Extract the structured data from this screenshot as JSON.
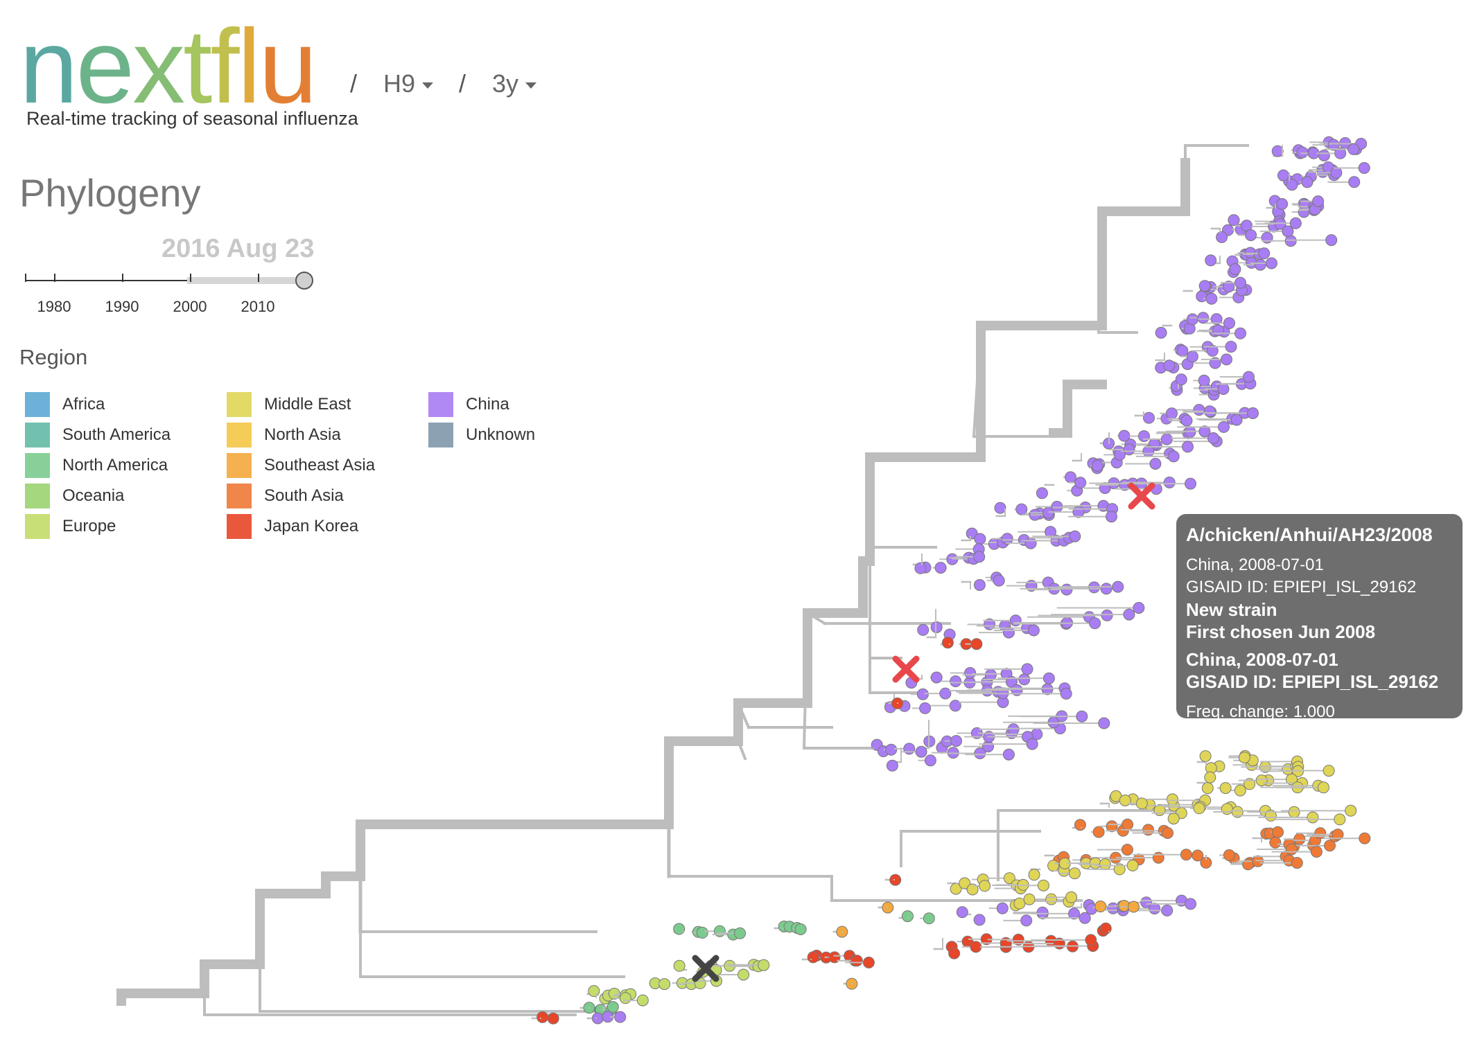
{
  "header": {
    "logo_letters": [
      {
        "ch": "n",
        "color": "#5ba7a2"
      },
      {
        "ch": "e",
        "color": "#6db38a"
      },
      {
        "ch": "x",
        "color": "#85bd74"
      },
      {
        "ch": "t",
        "color": "#a5c55f"
      },
      {
        "ch": "f",
        "color": "#c1bf4d"
      },
      {
        "ch": "l",
        "color": "#e0aa3b"
      },
      {
        "ch": "u",
        "color": "#e37f34"
      }
    ],
    "separator": "/",
    "lineage": "H9",
    "resolution": "3y",
    "tagline": "Real-time tracking of seasonal influenza"
  },
  "section_title": "Phylogeny",
  "date_slider": {
    "current_date": "2016 Aug 23",
    "ticks": [
      "1980",
      "1990",
      "2000",
      "2010"
    ],
    "axis_start_year": 1976,
    "axis_end_year": 2017,
    "range_start_year": 2000,
    "range_end_year": 2016.64
  },
  "legend": {
    "title": "Region",
    "items": [
      {
        "label": "Africa",
        "color": "#5ea9d4"
      },
      {
        "label": "South America",
        "color": "#62bba6"
      },
      {
        "label": "North America",
        "color": "#7ccb8e"
      },
      {
        "label": "Oceania",
        "color": "#9cd371"
      },
      {
        "label": "Europe",
        "color": "#c3dc6a"
      },
      {
        "label": "Middle East",
        "color": "#dfd557"
      },
      {
        "label": "North Asia",
        "color": "#f5c746"
      },
      {
        "label": "Southeast Asia",
        "color": "#f4a93e"
      },
      {
        "label": "South Asia",
        "color": "#ef7a36"
      },
      {
        "label": "Japan Korea",
        "color": "#e74629"
      },
      {
        "label": "China",
        "color": "#a97df3"
      },
      {
        "label": "Unknown",
        "color": "#8099ab"
      }
    ]
  },
  "tooltip": {
    "strain": "A/chicken/Anhui/AH23/2008",
    "location_date": "China, 2008-07-01",
    "gisaid": "GISAID ID: EPIEPI_ISL_29162",
    "new_strain": "New strain",
    "first_chosen": "First chosen Jun 2008",
    "bold_location_date": "China, 2008-07-01",
    "bold_gisaid": "GISAID ID: EPIEPI_ISL_29162",
    "freq_change": "Freq. change: 1.000"
  },
  "colors": {
    "branch": "#bdbdbd",
    "vaccine_red": "#e8484b",
    "vaccine_dark": "#444444"
  }
}
